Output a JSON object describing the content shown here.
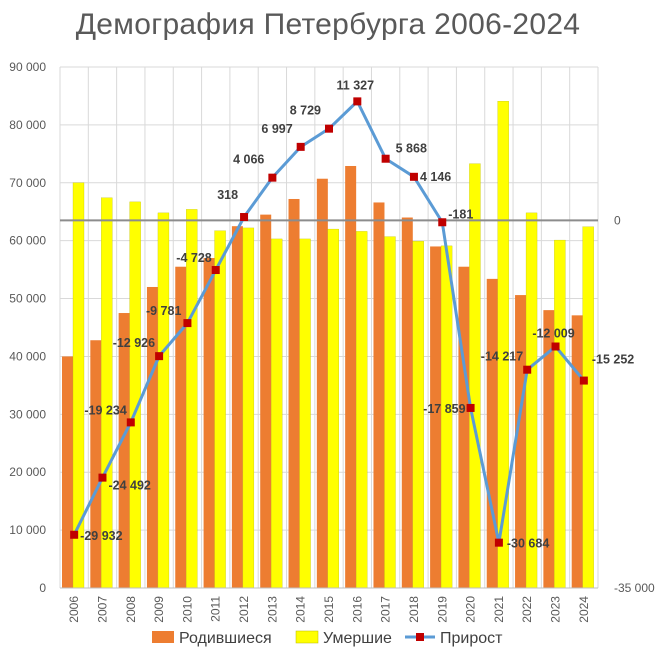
{
  "chart_data": {
    "type": "bar",
    "title": "Демография Петербурга 2006-2024",
    "categories": [
      "2006",
      "2007",
      "2008",
      "2009",
      "2010",
      "2011",
      "2012",
      "2013",
      "2014",
      "2015",
      "2016",
      "2017",
      "2018",
      "2019",
      "2020",
      "2021",
      "2022",
      "2023",
      "2024"
    ],
    "series": [
      {
        "name": "Родившиеся",
        "type": "bar",
        "color": "#ED7D31",
        "values": [
          40000,
          42800,
          47500,
          52000,
          55500,
          57000,
          62500,
          64500,
          67200,
          70700,
          72900,
          66600,
          64000,
          59000,
          55500,
          53400,
          50600,
          48000,
          47100
        ]
      },
      {
        "name": "Умершие",
        "type": "bar",
        "color": "#FFFF00",
        "values": [
          70000,
          67400,
          66700,
          64800,
          65400,
          61700,
          62200,
          60300,
          60300,
          62000,
          61600,
          60700,
          59900,
          59100,
          73300,
          84100,
          64800,
          60100,
          62400
        ]
      },
      {
        "name": "Прирост",
        "type": "line",
        "axis": "secondary",
        "color": "#5B9BD5",
        "marker_color": "#C00000",
        "values": [
          -29932,
          -24492,
          -19234,
          -12926,
          -9781,
          -4728,
          318,
          4066,
          6997,
          8729,
          11327,
          5868,
          4146,
          -181,
          -17859,
          -30684,
          -14217,
          -12009,
          -15252
        ],
        "labels": [
          "-29 932",
          "-24 492",
          "-19 234",
          "-12 926",
          "-9 781",
          "-4 728",
          "318",
          "4 066",
          "6 997",
          "8 729",
          "11 327",
          "5 868",
          "4 146",
          "-181",
          "-17 859",
          "-30 684",
          "-14 217",
          "-12 009",
          "-15 252"
        ]
      }
    ],
    "y_primary": {
      "min": 0,
      "max": 90000,
      "ticks": [
        0,
        10000,
        20000,
        30000,
        40000,
        50000,
        60000,
        70000,
        80000,
        90000
      ],
      "tick_labels": [
        "0",
        "10 000",
        "20 000",
        "30 000",
        "40 000",
        "50 000",
        "60 000",
        "70 000",
        "80 000",
        "90 000"
      ]
    },
    "y_secondary": {
      "min": -35000,
      "max": 14600,
      "tick_labels": [
        {
          "value": 0,
          "label": "0"
        },
        {
          "value": -35000,
          "label": "-35 000"
        }
      ]
    },
    "grid": true,
    "legend": "bottom"
  }
}
